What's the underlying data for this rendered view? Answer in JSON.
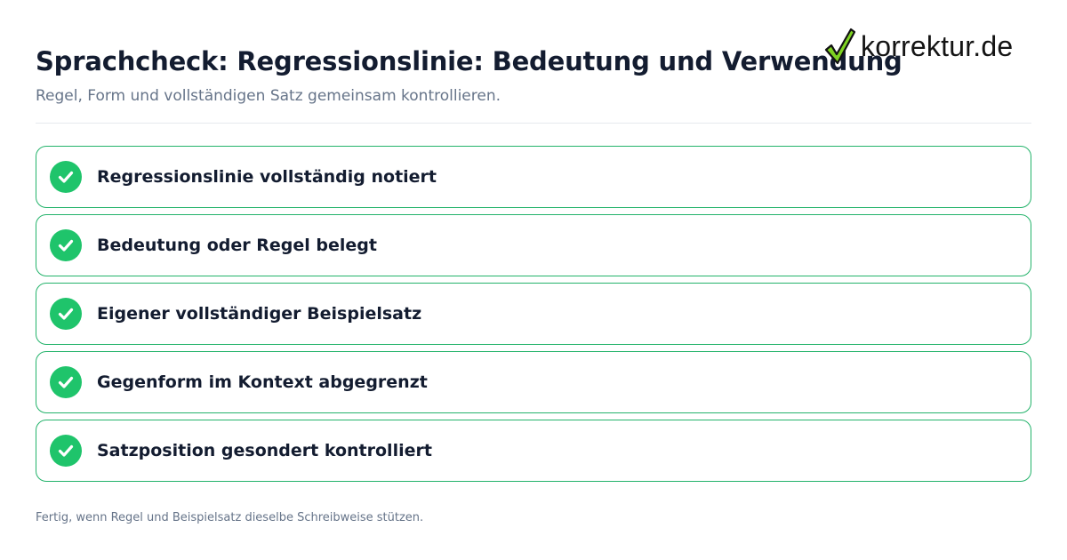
{
  "header": {
    "title": "Sprachcheck: Regressionslinie: Bedeutung und Verwendung",
    "subtitle": "Regel, Form und vollständigen Satz gemeinsam kontrollieren."
  },
  "logo": {
    "text": "korrektur.de",
    "icon": "checkmark-icon",
    "colors": {
      "check_fill": "#7ed321",
      "check_stroke": "#111111"
    }
  },
  "checklist": {
    "items": [
      {
        "label": "Regressionslinie vollständig notiert",
        "status": "checked"
      },
      {
        "label": "Bedeutung oder Regel belegt",
        "status": "checked"
      },
      {
        "label": "Eigener vollständiger Beispielsatz",
        "status": "checked"
      },
      {
        "label": "Gegenform im Kontext abgegrenzt",
        "status": "checked"
      },
      {
        "label": "Satzposition gesondert kontrolliert",
        "status": "checked"
      }
    ],
    "colors": {
      "accent": "#1fc46b",
      "border": "#24b36b"
    }
  },
  "footer": {
    "note": "Fertig, wenn Regel und Beispielsatz dieselbe Schreibweise stützen."
  }
}
